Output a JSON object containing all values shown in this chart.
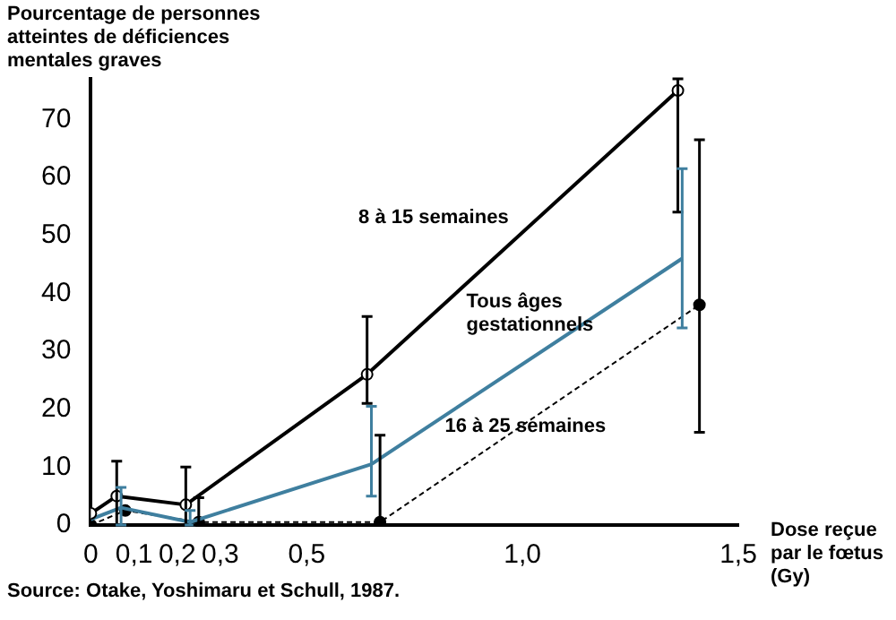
{
  "chart_data": {
    "type": "line",
    "ylabel": "Pourcentage de personnes atteintes de déficiences mentales graves",
    "xlabel": "Dose reçue par le fœtus (Gy)",
    "annotations": [
      "Source: Otake, Yoshimaru et Schull, 1987."
    ],
    "xlim": [
      0,
      1.5
    ],
    "xticks": [
      0,
      {
        "value": 0.1,
        "label": "0,1"
      },
      {
        "value": 0.2,
        "label": "0,2"
      },
      {
        "value": 0.3,
        "label": "0,3"
      },
      {
        "value": 0.5,
        "label": "0,5"
      },
      {
        "value": 1.0,
        "label": "1,0"
      },
      {
        "value": 1.5,
        "label": "1,5"
      }
    ],
    "ylim": [
      0,
      77
    ],
    "yticks": [
      0,
      10,
      20,
      30,
      40,
      50,
      60,
      70
    ],
    "grid": false,
    "legend": false,
    "series": [
      {
        "name": "8 à 15 semaines",
        "color": "#000000",
        "x": [
          0,
          0.06,
          0.22,
          0.64,
          1.36
        ],
        "values": [
          2,
          5,
          3.5,
          26,
          75
        ],
        "errors": [
          null,
          [
            0,
            11
          ],
          [
            0,
            10
          ],
          [
            21,
            36
          ],
          [
            54,
            77
          ]
        ],
        "marker": "circle",
        "line_style": "solid"
      },
      {
        "name": "Tous âges gestationnels",
        "color": "#3f7f9f",
        "x": [
          0,
          0.07,
          0.23,
          0.65,
          1.37
        ],
        "values": [
          1,
          3,
          0.5,
          10.5,
          46
        ],
        "errors": [
          null,
          [
            0,
            6.5
          ],
          [
            0,
            2.5
          ],
          [
            5,
            20.5
          ],
          [
            34,
            61.5
          ]
        ],
        "marker": "none",
        "line_style": "solid"
      },
      {
        "name": "16 à 25 semaines",
        "color": "#000000",
        "x": [
          0,
          0.08,
          0.25,
          0.67,
          1.41
        ],
        "values": [
          0,
          2.5,
          0.5,
          0.5,
          38
        ],
        "errors": [
          null,
          null,
          [
            0,
            4.7
          ],
          [
            0,
            15.5
          ],
          [
            16,
            66.5
          ]
        ],
        "marker": "circle",
        "line_style": "dashed"
      }
    ]
  }
}
